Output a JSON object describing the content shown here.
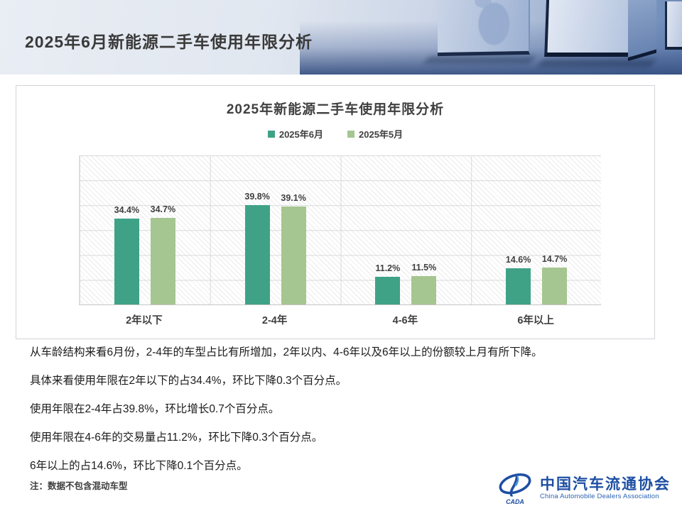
{
  "header": {
    "title": "2025年6月新能源二手车使用年限分析"
  },
  "chart_data": {
    "type": "bar",
    "title": "2025年新能源二手车使用年限分析",
    "categories": [
      "2年以下",
      "2-4年",
      "4-6年",
      "6年以上"
    ],
    "series": [
      {
        "name": "2025年6月",
        "color": "#3fa287",
        "values": [
          34.4,
          39.8,
          11.2,
          14.6
        ]
      },
      {
        "name": "2025年5月",
        "color": "#a5c690",
        "values": [
          34.7,
          39.1,
          11.5,
          14.7
        ]
      }
    ],
    "unit": "%",
    "xlabel": "",
    "ylabel": "",
    "ylim": [
      0,
      60
    ],
    "grid": true,
    "legend_position": "top",
    "plot_background": "hatched"
  },
  "analysis": {
    "paragraphs": [
      "从车龄结构来看6月份，2-4年的车型占比有所增加，2年以内、4-6年以及6年以上的份额较上月有所下降。",
      "具体来看使用年限在2年以下的占34.4%，环比下降0.3个百分点。",
      "使用年限在2-4年占39.8%，环比增长0.7个百分点。",
      "使用年限在4-6年的交易量占11.2%，环比下降0.3个百分点。",
      "6年以上的占14.6%，环比下降0.1个百分点。"
    ],
    "note": "注：数据不包含混动车型"
  },
  "footer": {
    "logo_acronym": "CADA",
    "org_name_cn": "中国汽车流通协会",
    "org_name_en": "China Automobile Dealers Association",
    "brand_color": "#1d4ea3"
  }
}
